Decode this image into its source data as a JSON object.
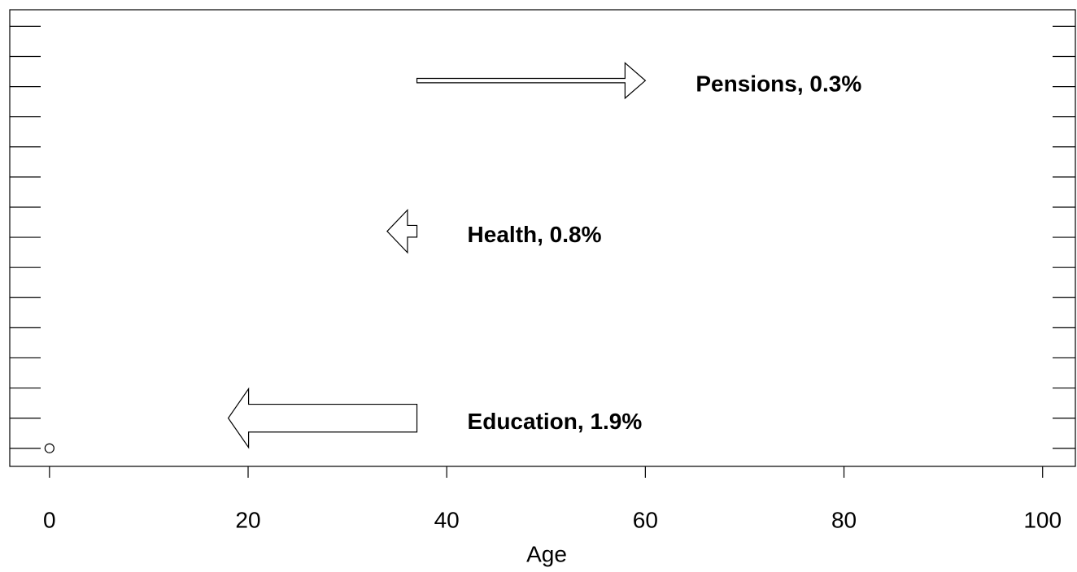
{
  "chart_data": {
    "type": "arrow",
    "x_label": "Age",
    "xlim": [
      -4,
      103.3
    ],
    "xticks": [
      0,
      20,
      40,
      60,
      80,
      100
    ],
    "ylim": [
      -0.6,
      14.55
    ],
    "yticks": [
      0,
      1,
      2,
      3,
      4,
      5,
      6,
      7,
      8,
      9,
      10,
      11,
      12,
      13,
      14
    ],
    "arrows": [
      {
        "label": "Pensions, 0.3%",
        "start": 37,
        "end": 60,
        "y": 12.2,
        "width": 0.3
      },
      {
        "label": "Health, 0.8%",
        "start": 37,
        "end": 34,
        "y": 7.2,
        "width": 0.8
      },
      {
        "label": "Education, 1.9%",
        "start": 37,
        "end": 18,
        "y": 1,
        "width": 1.9
      }
    ],
    "points": [
      {
        "x": 0,
        "y": 0
      }
    ],
    "color": "#000000"
  }
}
